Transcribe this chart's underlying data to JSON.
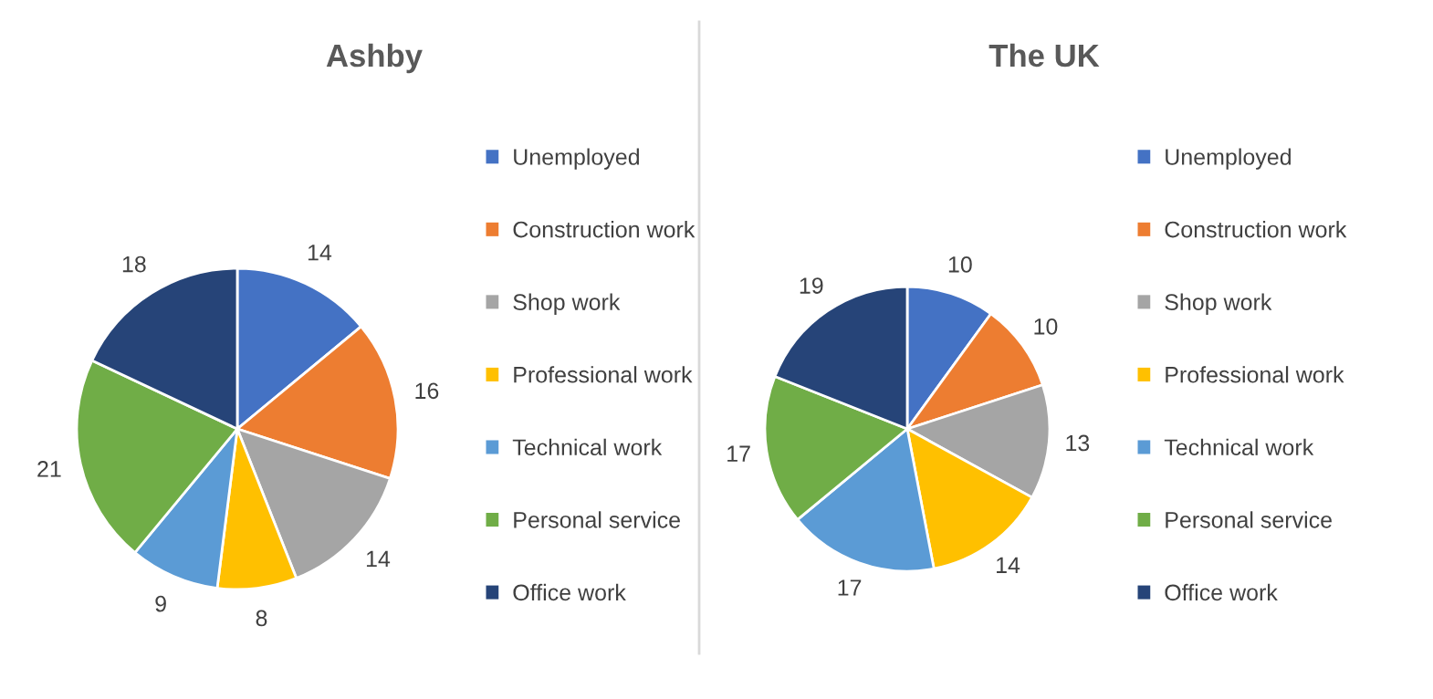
{
  "chart_data": [
    {
      "type": "pie",
      "title": "Ashby",
      "categories": [
        "Unemployed",
        "Construction work",
        "Shop work",
        "Professional work",
        "Technical work",
        "Personal service",
        "Office work"
      ],
      "values": [
        14,
        16,
        14,
        8,
        9,
        21,
        18
      ],
      "colors": [
        "#4472c4",
        "#ed7d31",
        "#a5a5a5",
        "#ffc000",
        "#5b9bd5",
        "#70ad47",
        "#264478"
      ],
      "data_labels": true,
      "legend": "right"
    },
    {
      "type": "pie",
      "title": "The UK",
      "categories": [
        "Unemployed",
        "Construction work",
        "Shop work",
        "Professional work",
        "Technical work",
        "Personal service",
        "Office work"
      ],
      "values": [
        10,
        10,
        13,
        14,
        17,
        17,
        19
      ],
      "colors": [
        "#4472c4",
        "#ed7d31",
        "#a5a5a5",
        "#ffc000",
        "#5b9bd5",
        "#70ad47",
        "#264478"
      ],
      "data_labels": true,
      "legend": "right"
    }
  ]
}
